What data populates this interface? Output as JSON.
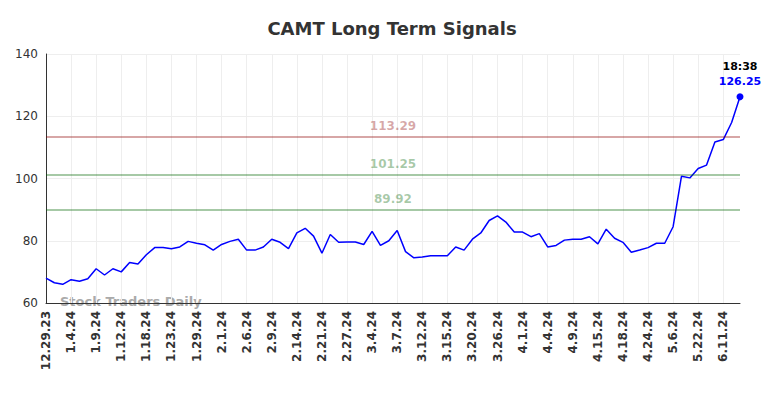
{
  "chart_data": {
    "type": "line",
    "title": "CAMT Long Term Signals",
    "categories": [
      "12.29.23",
      null,
      null,
      "1.4.24",
      null,
      null,
      "1.9.24",
      null,
      null,
      "1.12.24",
      null,
      null,
      "1.18.24",
      null,
      null,
      "1.23.24",
      null,
      null,
      "1.29.24",
      null,
      null,
      "2.1.24",
      null,
      null,
      "2.6.24",
      null,
      null,
      "2.9.24",
      null,
      null,
      "2.14.24",
      null,
      null,
      "2.21.24",
      null,
      null,
      "2.27.24",
      null,
      null,
      "3.4.24",
      null,
      null,
      "3.7.24",
      null,
      null,
      "3.12.24",
      null,
      null,
      "3.15.24",
      null,
      null,
      "3.20.24",
      null,
      null,
      "3.26.24",
      null,
      null,
      "4.1.24",
      null,
      null,
      "4.4.24",
      null,
      null,
      "4.9.24",
      null,
      null,
      "4.15.24",
      null,
      null,
      "4.18.24",
      null,
      null,
      "4.24.24",
      null,
      null,
      "5.6.24",
      null,
      null,
      "5.22.24",
      null,
      null,
      "6.11.24",
      null,
      null
    ],
    "values": [
      68,
      66.5,
      66,
      67.5,
      67,
      67.8,
      71,
      69,
      71,
      70,
      73,
      72.5,
      75.5,
      77.8,
      77.8,
      77.4,
      78,
      79.8,
      79.2,
      78.7,
      77,
      78.8,
      79.8,
      80.5,
      77,
      77,
      78,
      80.5,
      79.5,
      77.5,
      82.5,
      84,
      81.5,
      76,
      82,
      79.5,
      79.6,
      79.6,
      78.8,
      83,
      78.5,
      80,
      83.3,
      76.5,
      74.5,
      74.8,
      75.2,
      75.2,
      75.2,
      78,
      77,
      80.5,
      82.5,
      86.5,
      88,
      86,
      82.8,
      82.8,
      81.3,
      82.3,
      78,
      78.5,
      80.2,
      80.5,
      80.5,
      81.3,
      79,
      83.7,
      80.8,
      79.5,
      76.3,
      77,
      77.8,
      79.2,
      79.2,
      84.5,
      100.7,
      100.2,
      103.2,
      104.3,
      111.7,
      112.5,
      118,
      126.25
    ],
    "color": "#0000ff",
    "ylim": [
      60,
      140
    ],
    "yticks": [
      60,
      80,
      100,
      120,
      140
    ],
    "grid": true,
    "reference_lines": [
      {
        "value": 113.29,
        "color": "#8b0000"
      },
      {
        "value": 101.25,
        "color": "#006400"
      },
      {
        "value": 89.92,
        "color": "#006400"
      }
    ],
    "last_point_annotation": "18:38",
    "watermark": "Stock Traders Daily"
  }
}
